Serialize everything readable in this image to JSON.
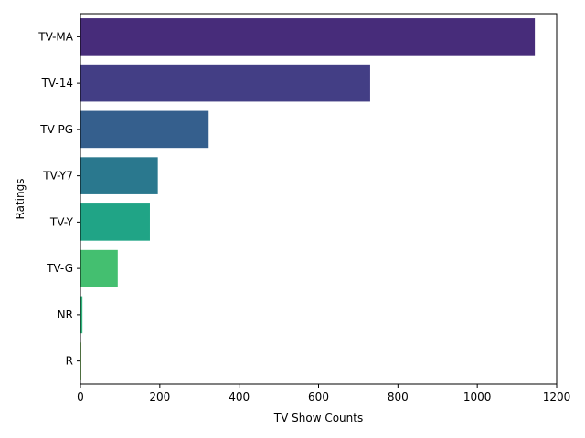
{
  "chart_data": {
    "type": "bar",
    "orientation": "horizontal",
    "categories": [
      "TV-MA",
      "TV-14",
      "TV-PG",
      "TV-Y7",
      "TV-Y",
      "TV-G",
      "NR",
      "R"
    ],
    "values": [
      1145,
      730,
      323,
      195,
      175,
      94,
      5,
      2
    ],
    "colors": [
      "#472c7a",
      "#433e85",
      "#355f8d",
      "#2a788e",
      "#20a486",
      "#44bf70",
      "#2fb47c",
      "#7ad151"
    ],
    "xlabel": "TV Show Counts",
    "ylabel": "Ratings",
    "xlim": [
      0,
      1200
    ],
    "xticks": [
      0,
      200,
      400,
      600,
      800,
      1000,
      1200
    ],
    "grid": false
  }
}
